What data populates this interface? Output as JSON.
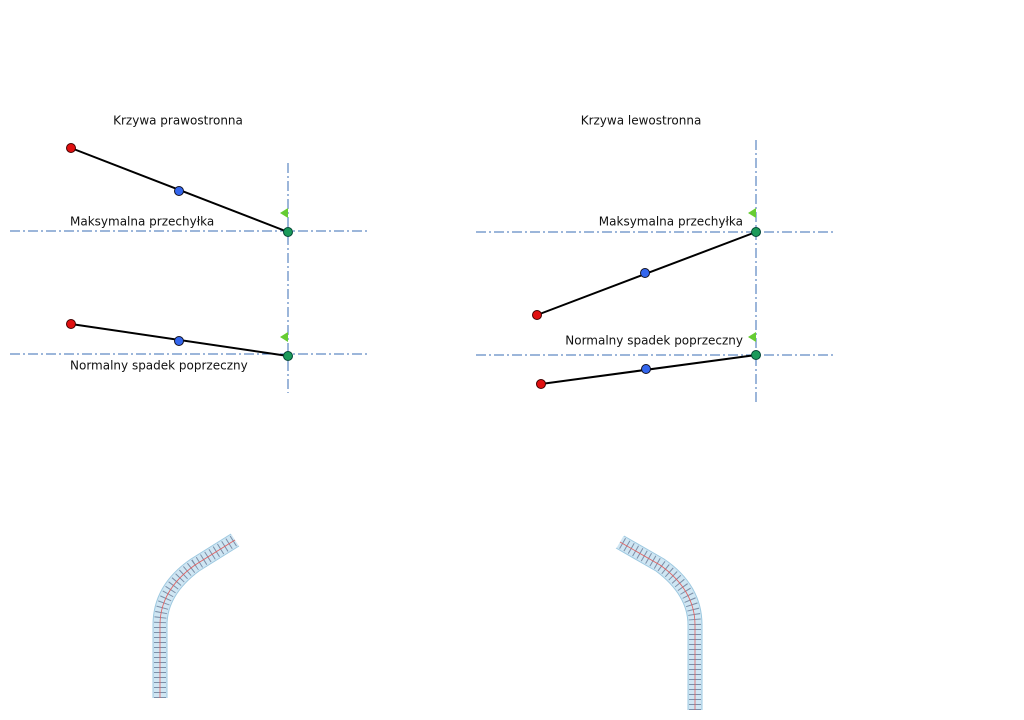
{
  "panels": [
    {
      "title": "Krzywa prawostronna",
      "max_label": "Maksymalna przechyłka",
      "normal_label": "Normalny spadek poprzeczny"
    },
    {
      "title": "Krzywa lewostronna",
      "max_label": "Maksymalna przechyłka",
      "normal_label": "Normalny spadek poprzeczny"
    }
  ]
}
